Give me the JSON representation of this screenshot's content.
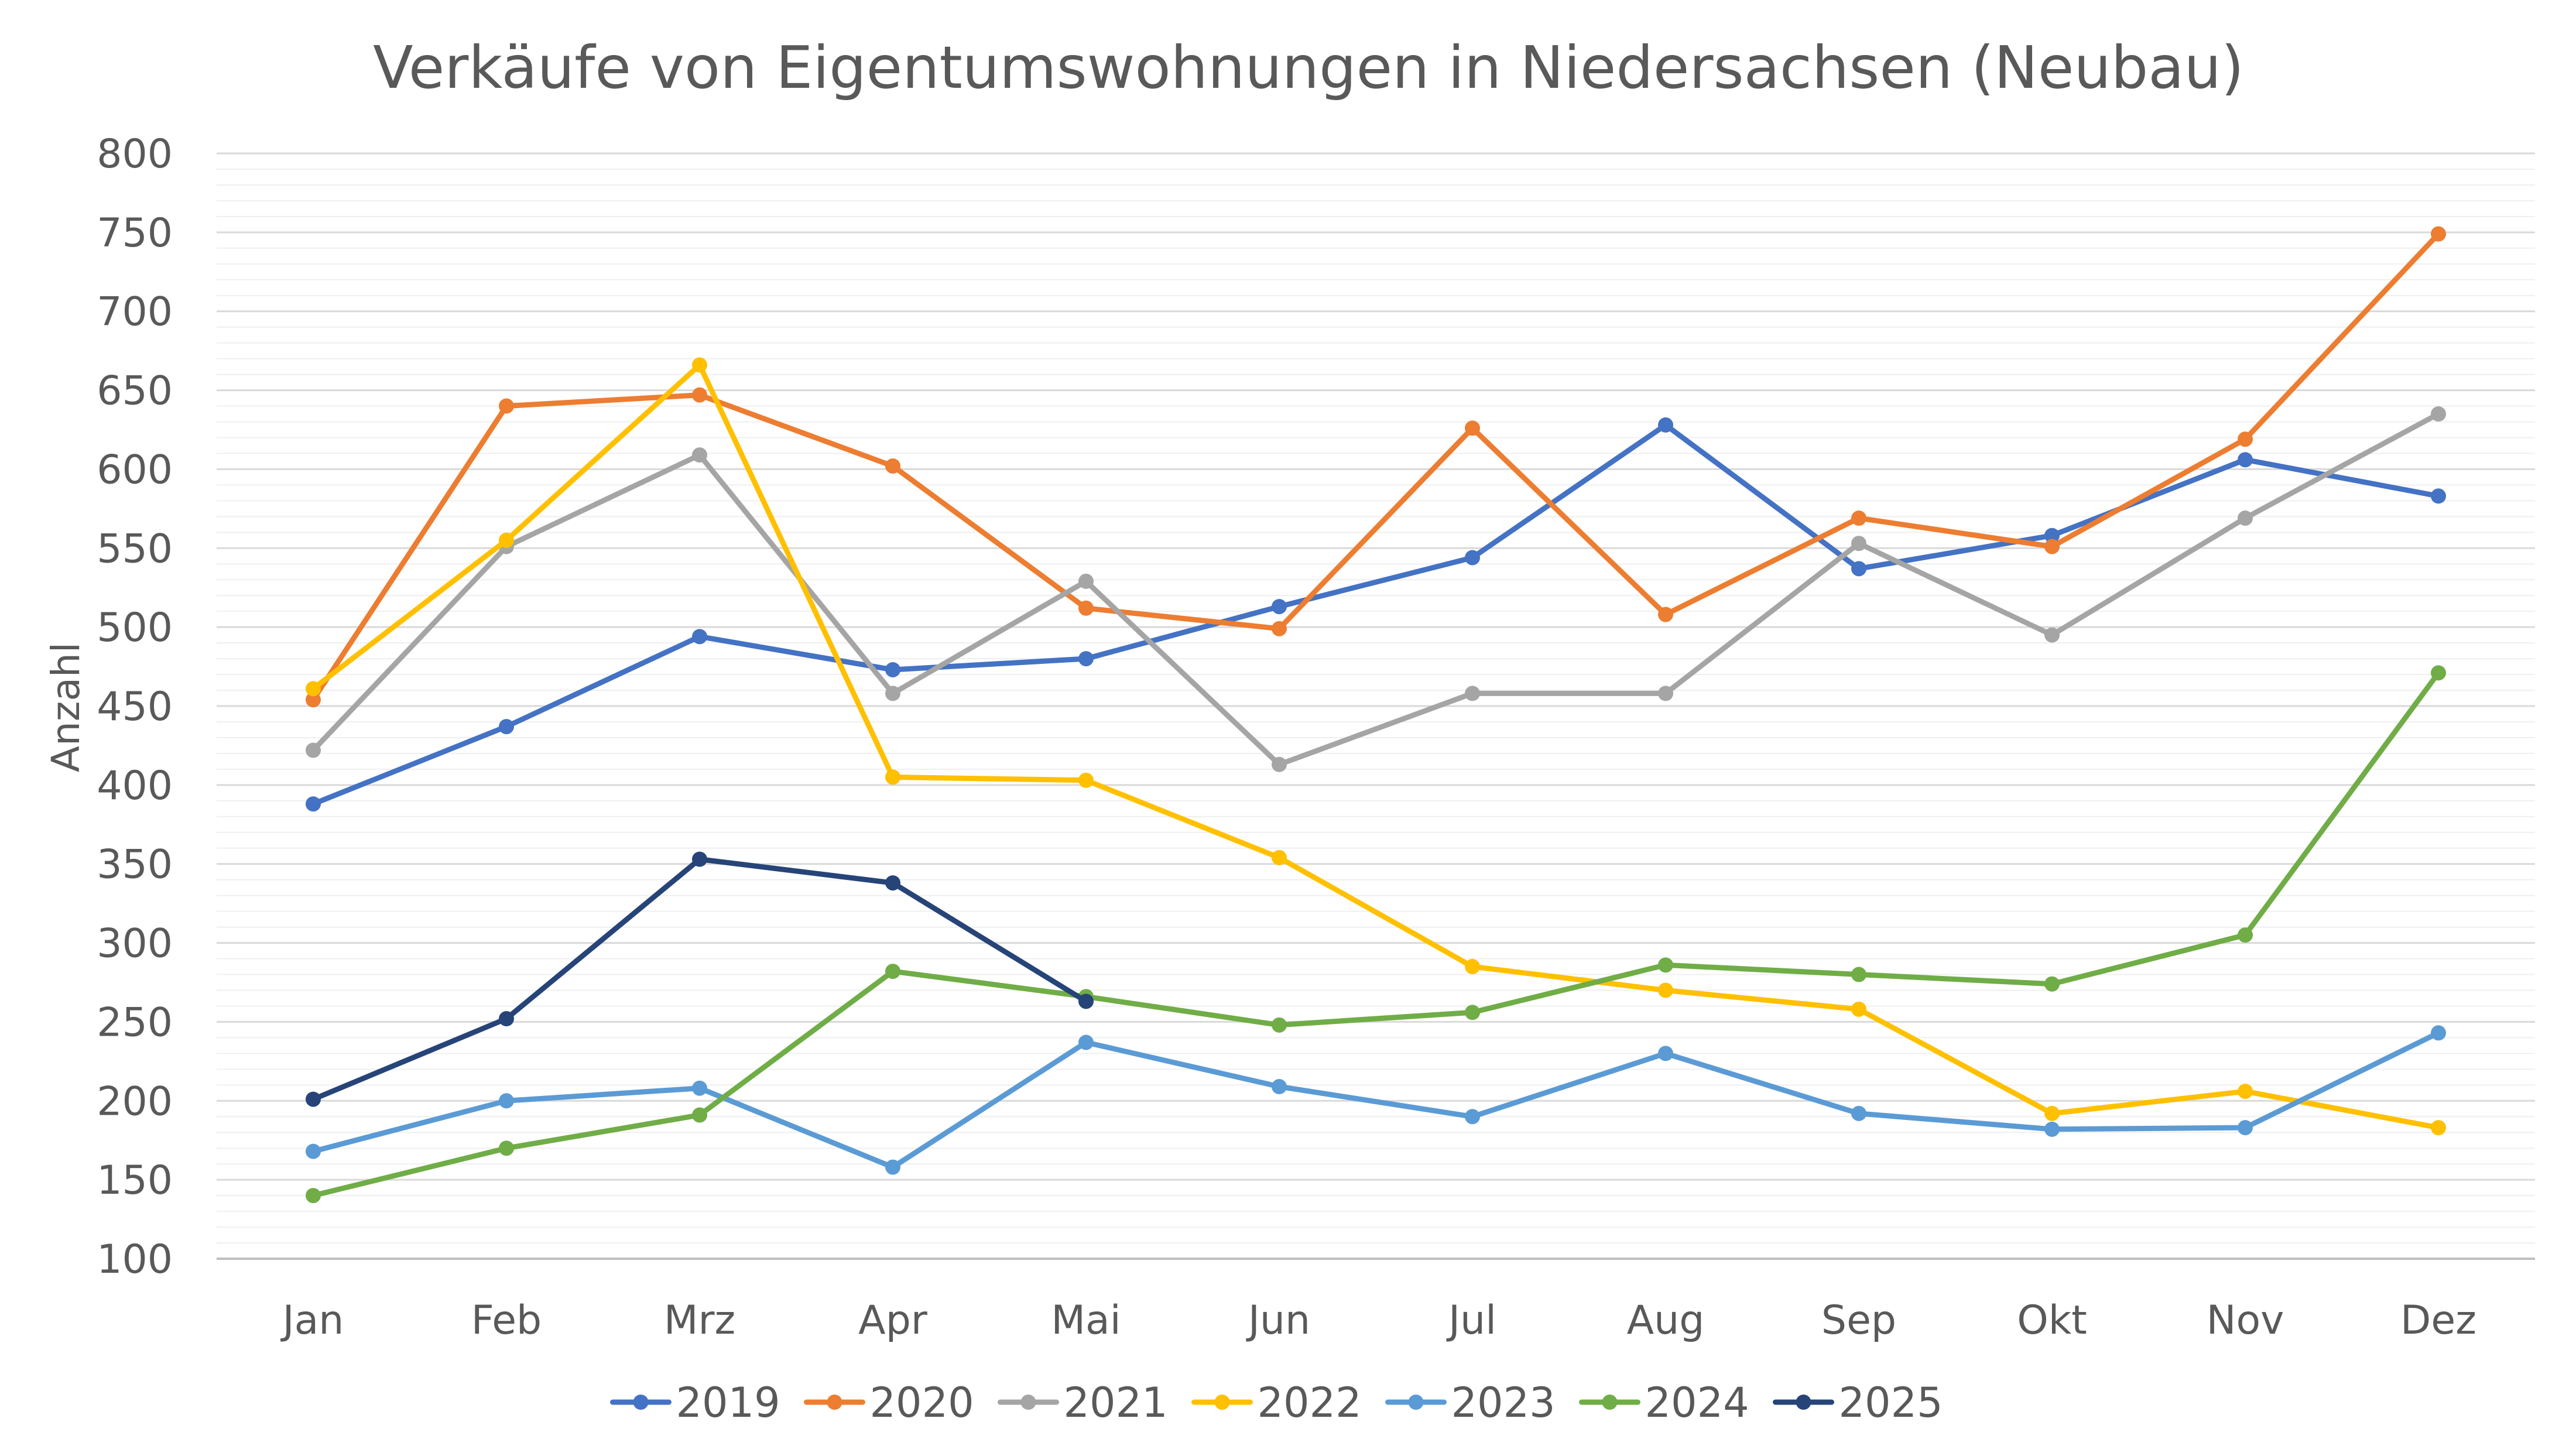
{
  "chart_data": {
    "type": "line",
    "title": "Verkäufe von Eigentumswohnungen in Niedersachsen (Neubau)",
    "xlabel": "",
    "ylabel": "Anzahl",
    "ylim": [
      100,
      800
    ],
    "y_major_step": 50,
    "y_minor_step": 10,
    "grid": true,
    "legend_position": "bottom",
    "categories": [
      "Jan",
      "Feb",
      "Mrz",
      "Apr",
      "Mai",
      "Jun",
      "Jul",
      "Aug",
      "Sep",
      "Okt",
      "Nov",
      "Dez"
    ],
    "series": [
      {
        "name": "2019",
        "color": "#4472C4",
        "values": [
          388,
          437,
          494,
          473,
          480,
          513,
          544,
          628,
          537,
          558,
          606,
          583
        ]
      },
      {
        "name": "2020",
        "color": "#ED7D31",
        "values": [
          454,
          640,
          647,
          602,
          512,
          499,
          626,
          508,
          569,
          551,
          619,
          749
        ]
      },
      {
        "name": "2021",
        "color": "#A5A5A5",
        "values": [
          422,
          551,
          609,
          458,
          529,
          413,
          458,
          458,
          553,
          495,
          569,
          635
        ]
      },
      {
        "name": "2022",
        "color": "#FFC000",
        "values": [
          461,
          555,
          666,
          405,
          403,
          354,
          285,
          270,
          258,
          192,
          206,
          183
        ]
      },
      {
        "name": "2023",
        "color": "#5B9BD5",
        "values": [
          168,
          200,
          208,
          158,
          237,
          209,
          190,
          230,
          192,
          182,
          183,
          243
        ]
      },
      {
        "name": "2024",
        "color": "#70AD47",
        "values": [
          140,
          170,
          191,
          282,
          266,
          248,
          256,
          286,
          280,
          274,
          305,
          471
        ]
      },
      {
        "name": "2025",
        "color": "#264478",
        "values": [
          201,
          252,
          353,
          338,
          263,
          null,
          null,
          null,
          null,
          null,
          null,
          null
        ]
      }
    ]
  }
}
